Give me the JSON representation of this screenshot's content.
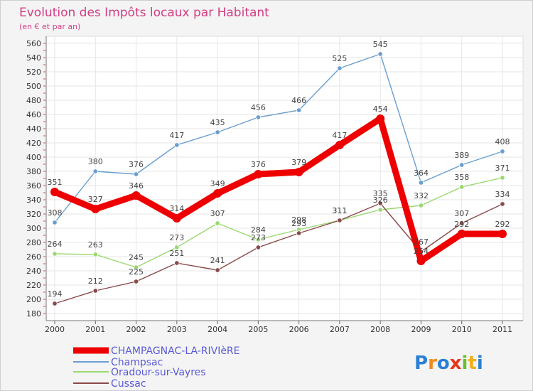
{
  "chart_data": {
    "type": "line",
    "title": "Evolution des Impôts locaux par Habitant",
    "subtitle": "(en € et par an)",
    "x": [
      "2000",
      "2001",
      "2002",
      "2003",
      "2004",
      "2005",
      "2006",
      "2007",
      "2008",
      "2009",
      "2010",
      "2011"
    ],
    "yticks": [
      180,
      200,
      220,
      240,
      260,
      280,
      300,
      320,
      340,
      360,
      380,
      400,
      420,
      440,
      460,
      480,
      500,
      520,
      540,
      560
    ],
    "ylim": [
      180,
      560
    ],
    "grid": true,
    "series": [
      {
        "name": "CHAMPAGNAC-LA-RIVIèRE",
        "color": "#ee0000",
        "values": [
          351,
          327,
          346,
          314,
          349,
          376,
          379,
          417,
          454,
          254,
          292,
          292
        ]
      },
      {
        "name": "Champsac",
        "color": "#6a9ed0",
        "values": [
          308,
          380,
          376,
          417,
          435,
          456,
          466,
          525,
          545,
          364,
          389,
          408
        ]
      },
      {
        "name": "Oradour-sur-Vayres",
        "color": "#9ad870",
        "values": [
          264,
          263,
          245,
          273,
          307,
          284,
          298,
          311,
          326,
          332,
          358,
          371
        ]
      },
      {
        "name": "Cussac",
        "color": "#8a4a4a",
        "values": [
          194,
          212,
          225,
          251,
          241,
          273,
          293,
          311,
          335,
          267,
          307,
          334
        ]
      }
    ],
    "legend_position": "bottom-left"
  },
  "logo": {
    "text": "Proxiti"
  }
}
